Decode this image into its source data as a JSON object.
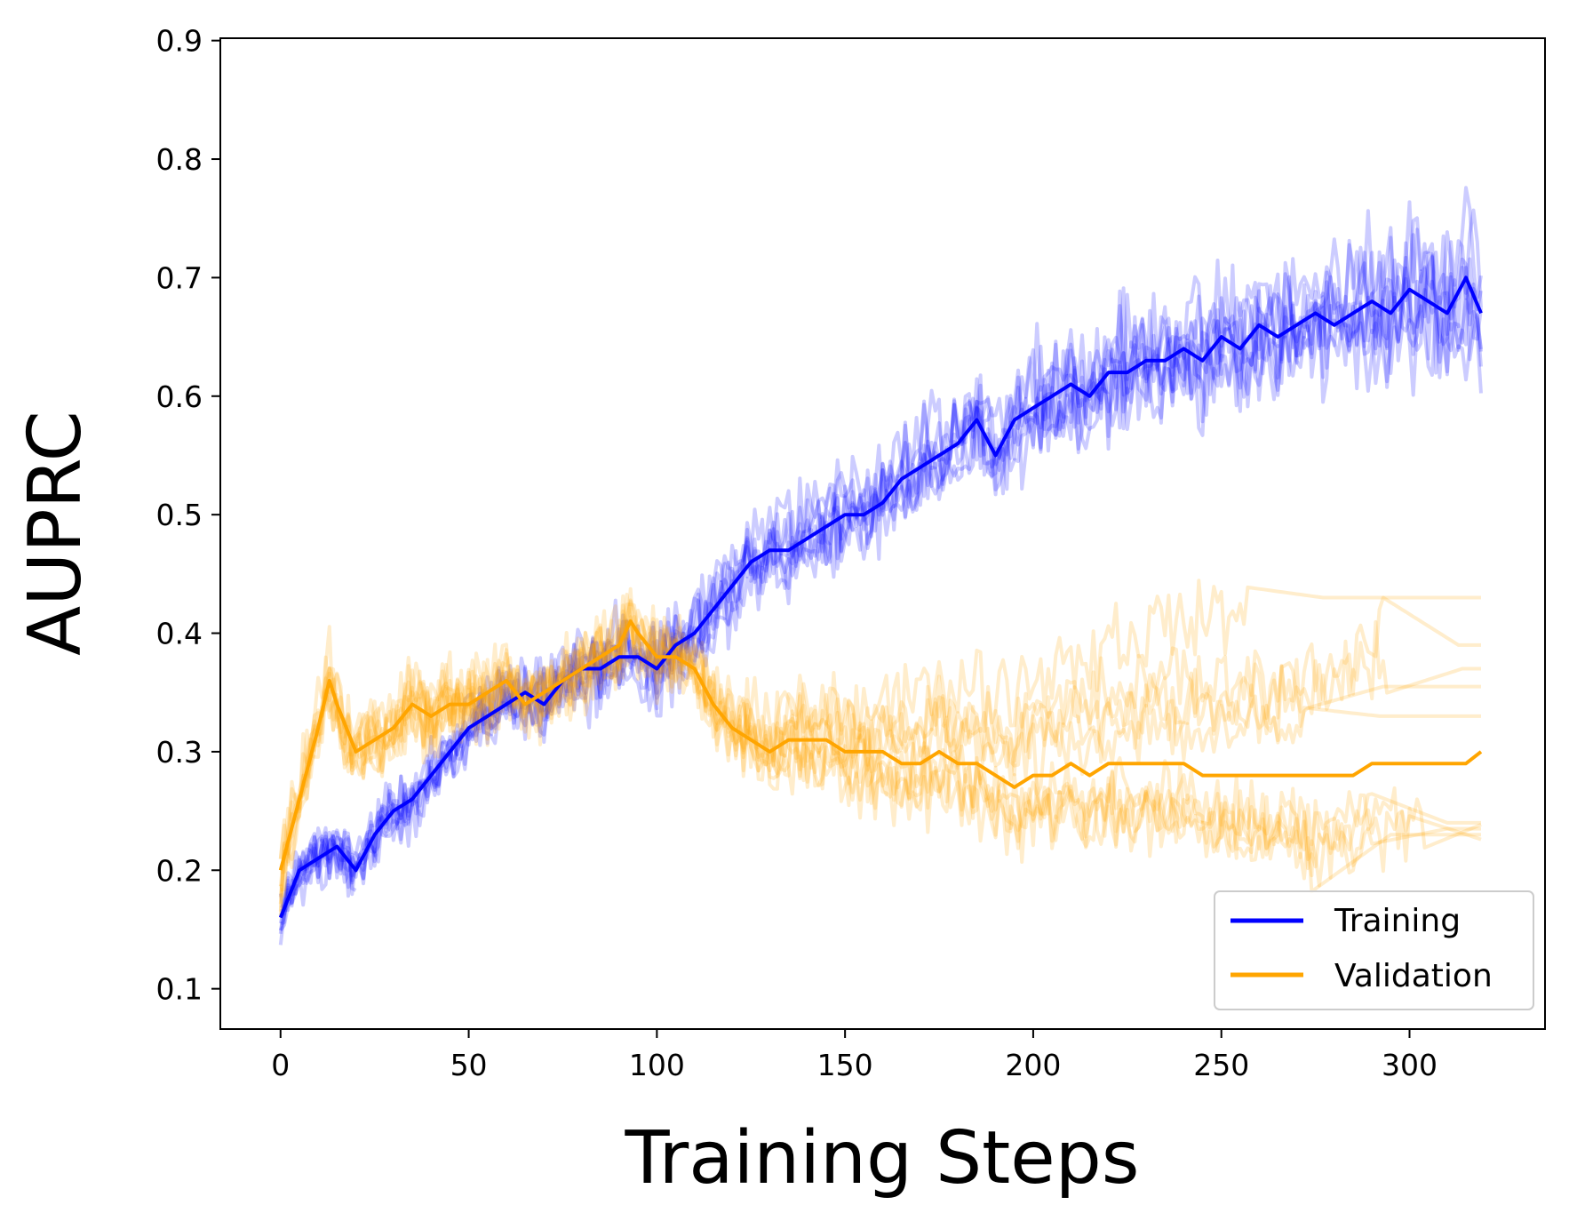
{
  "chart_data": {
    "type": "line",
    "title": "",
    "xlabel": "Training Steps",
    "ylabel": "AUPRC",
    "xlim": [
      -16,
      336
    ],
    "ylim": [
      0.066,
      0.902
    ],
    "xticks": [
      0,
      50,
      100,
      150,
      200,
      250,
      300
    ],
    "yticks": [
      0.1,
      0.2,
      0.3,
      0.4,
      0.5,
      0.6,
      0.7,
      0.8,
      0.9
    ],
    "xtick_labels": [
      "0",
      "50",
      "100",
      "150",
      "200",
      "250",
      "300"
    ],
    "ytick_labels": [
      "0.1",
      "0.2",
      "0.3",
      "0.4",
      "0.5",
      "0.6",
      "0.7",
      "0.8",
      "0.9"
    ],
    "grid": false,
    "legend": {
      "position": "lower right",
      "entries": [
        {
          "label": "Training",
          "color": "#0000ff"
        },
        {
          "label": "Validation",
          "color": "#ffa500"
        }
      ]
    },
    "colors": {
      "training": "#0000ff",
      "validation": "#ffa500"
    },
    "background_runs": {
      "training": 10,
      "validation": 10,
      "alpha": 0.2
    },
    "series": [
      {
        "name": "Training",
        "color": "#0000ff",
        "x": [
          0,
          5,
          10,
          15,
          20,
          25,
          30,
          35,
          40,
          45,
          50,
          55,
          60,
          65,
          70,
          75,
          80,
          85,
          90,
          95,
          100,
          105,
          110,
          115,
          120,
          125,
          130,
          135,
          140,
          145,
          150,
          155,
          160,
          165,
          170,
          175,
          180,
          185,
          190,
          195,
          200,
          205,
          210,
          215,
          220,
          225,
          230,
          235,
          240,
          245,
          250,
          255,
          260,
          265,
          270,
          275,
          280,
          285,
          290,
          295,
          300,
          305,
          310,
          315,
          319
        ],
        "y": [
          0.16,
          0.2,
          0.21,
          0.22,
          0.2,
          0.23,
          0.25,
          0.26,
          0.28,
          0.3,
          0.32,
          0.33,
          0.34,
          0.35,
          0.34,
          0.36,
          0.37,
          0.37,
          0.38,
          0.38,
          0.37,
          0.39,
          0.4,
          0.42,
          0.44,
          0.46,
          0.47,
          0.47,
          0.48,
          0.49,
          0.5,
          0.5,
          0.51,
          0.53,
          0.54,
          0.55,
          0.56,
          0.58,
          0.55,
          0.58,
          0.59,
          0.6,
          0.61,
          0.6,
          0.62,
          0.62,
          0.63,
          0.63,
          0.64,
          0.63,
          0.65,
          0.64,
          0.66,
          0.65,
          0.66,
          0.67,
          0.66,
          0.67,
          0.68,
          0.67,
          0.69,
          0.68,
          0.67,
          0.7,
          0.67
        ]
      },
      {
        "name": "Validation",
        "color": "#ffa500",
        "x": [
          0,
          5,
          10,
          13,
          15,
          20,
          25,
          30,
          35,
          40,
          45,
          50,
          55,
          60,
          65,
          70,
          75,
          80,
          85,
          90,
          93,
          95,
          100,
          105,
          110,
          115,
          120,
          125,
          130,
          135,
          140,
          145,
          150,
          155,
          160,
          165,
          170,
          175,
          180,
          185,
          190,
          195,
          200,
          205,
          210,
          215,
          220,
          225,
          230,
          235,
          240,
          245,
          250,
          255,
          260,
          265,
          270,
          275,
          280,
          285,
          290,
          295,
          300,
          305,
          310,
          315,
          319
        ],
        "y": [
          0.2,
          0.26,
          0.32,
          0.36,
          0.34,
          0.3,
          0.31,
          0.32,
          0.34,
          0.33,
          0.34,
          0.34,
          0.35,
          0.36,
          0.34,
          0.35,
          0.36,
          0.37,
          0.38,
          0.39,
          0.41,
          0.4,
          0.38,
          0.38,
          0.37,
          0.34,
          0.32,
          0.31,
          0.3,
          0.31,
          0.31,
          0.31,
          0.3,
          0.3,
          0.3,
          0.29,
          0.29,
          0.3,
          0.29,
          0.29,
          0.28,
          0.27,
          0.28,
          0.28,
          0.29,
          0.28,
          0.29,
          0.29,
          0.29,
          0.29,
          0.29,
          0.28,
          0.28,
          0.28,
          0.28,
          0.28,
          0.28,
          0.28,
          0.28,
          0.28,
          0.29,
          0.29,
          0.29,
          0.29,
          0.29,
          0.29,
          0.3
        ]
      }
    ]
  }
}
